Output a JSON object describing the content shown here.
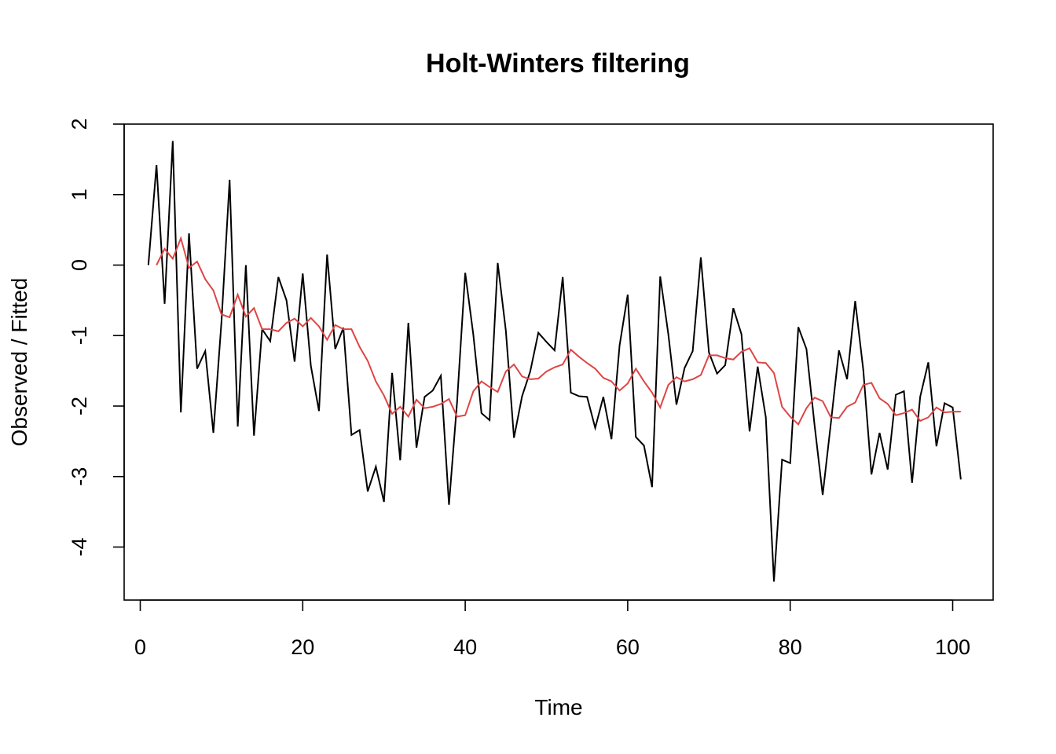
{
  "chart_data": {
    "type": "line",
    "title": "Holt-Winters filtering",
    "xlabel": "Time",
    "ylabel": "Observed / Fitted",
    "xlim": [
      1,
      101
    ],
    "ylim": [
      -4.5,
      2.0
    ],
    "x_ticks": [
      0,
      20,
      40,
      60,
      80,
      100
    ],
    "y_ticks": [
      -4,
      -3,
      -2,
      -1,
      0,
      1,
      2
    ],
    "grid": false,
    "legend": "none",
    "series": [
      {
        "role": "observed",
        "color": "#000000",
        "x_start": 1,
        "values": [
          0.0,
          1.42,
          -0.55,
          1.76,
          -2.09,
          0.45,
          -1.47,
          -1.22,
          -2.38,
          -0.8,
          1.21,
          -2.29,
          0.0,
          -2.42,
          -0.91,
          -1.08,
          -0.17,
          -0.5,
          -1.37,
          -0.12,
          -1.43,
          -2.07,
          0.15,
          -1.19,
          -0.89,
          -2.41,
          -2.34,
          -3.21,
          -2.86,
          -3.36,
          -1.53,
          -2.77,
          -0.82,
          -2.59,
          -1.87,
          -1.78,
          -1.57,
          -3.4,
          -1.94,
          -0.11,
          -0.99,
          -2.1,
          -2.2,
          0.03,
          -0.93,
          -2.45,
          -1.86,
          -1.51,
          -0.96,
          -1.09,
          -1.21,
          -0.17,
          -1.81,
          -1.86,
          -1.87,
          -2.31,
          -1.87,
          -2.47,
          -1.14,
          -0.42,
          -2.44,
          -2.56,
          -3.15,
          -0.16,
          -0.98,
          -1.98,
          -1.46,
          -1.22,
          0.11,
          -1.24,
          -1.54,
          -1.42,
          -0.61,
          -0.98,
          -2.36,
          -1.44,
          -2.16,
          -4.49,
          -2.76,
          -2.81,
          -0.88,
          -1.19,
          -2.27,
          -3.26,
          -2.25,
          -1.21,
          -1.62,
          -0.51,
          -1.49,
          -2.97,
          -2.38,
          -2.9,
          -1.84,
          -1.79,
          -3.09,
          -1.87,
          -1.38,
          -2.57,
          -1.96,
          -2.02,
          -3.04
        ]
      },
      {
        "role": "fitted",
        "color": "#DF4545",
        "x_start": 2,
        "values": [
          0.0,
          0.23,
          0.09,
          0.38,
          -0.04,
          0.05,
          -0.2,
          -0.36,
          -0.7,
          -0.74,
          -0.42,
          -0.73,
          -0.61,
          -0.91,
          -0.91,
          -0.94,
          -0.82,
          -0.76,
          -0.87,
          -0.75,
          -0.87,
          -1.06,
          -0.85,
          -0.91,
          -0.91,
          -1.16,
          -1.36,
          -1.65,
          -1.85,
          -2.11,
          -2.01,
          -2.15,
          -1.91,
          -2.03,
          -2.01,
          -1.97,
          -1.9,
          -2.15,
          -2.13,
          -1.79,
          -1.65,
          -1.73,
          -1.8,
          -1.51,
          -1.41,
          -1.58,
          -1.62,
          -1.61,
          -1.51,
          -1.45,
          -1.41,
          -1.2,
          -1.3,
          -1.39,
          -1.47,
          -1.6,
          -1.65,
          -1.78,
          -1.68,
          -1.47,
          -1.65,
          -1.81,
          -2.02,
          -1.7,
          -1.59,
          -1.65,
          -1.62,
          -1.56,
          -1.28,
          -1.28,
          -1.32,
          -1.34,
          -1.23,
          -1.18,
          -1.38,
          -1.39,
          -1.53,
          -2.01,
          -2.15,
          -2.26,
          -2.03,
          -1.88,
          -1.93,
          -2.16,
          -2.17,
          -2.01,
          -1.95,
          -1.7,
          -1.67,
          -1.89,
          -1.97,
          -2.13,
          -2.1,
          -2.05,
          -2.21,
          -2.16,
          -2.02,
          -2.09,
          -2.08,
          -2.08
        ]
      }
    ]
  }
}
